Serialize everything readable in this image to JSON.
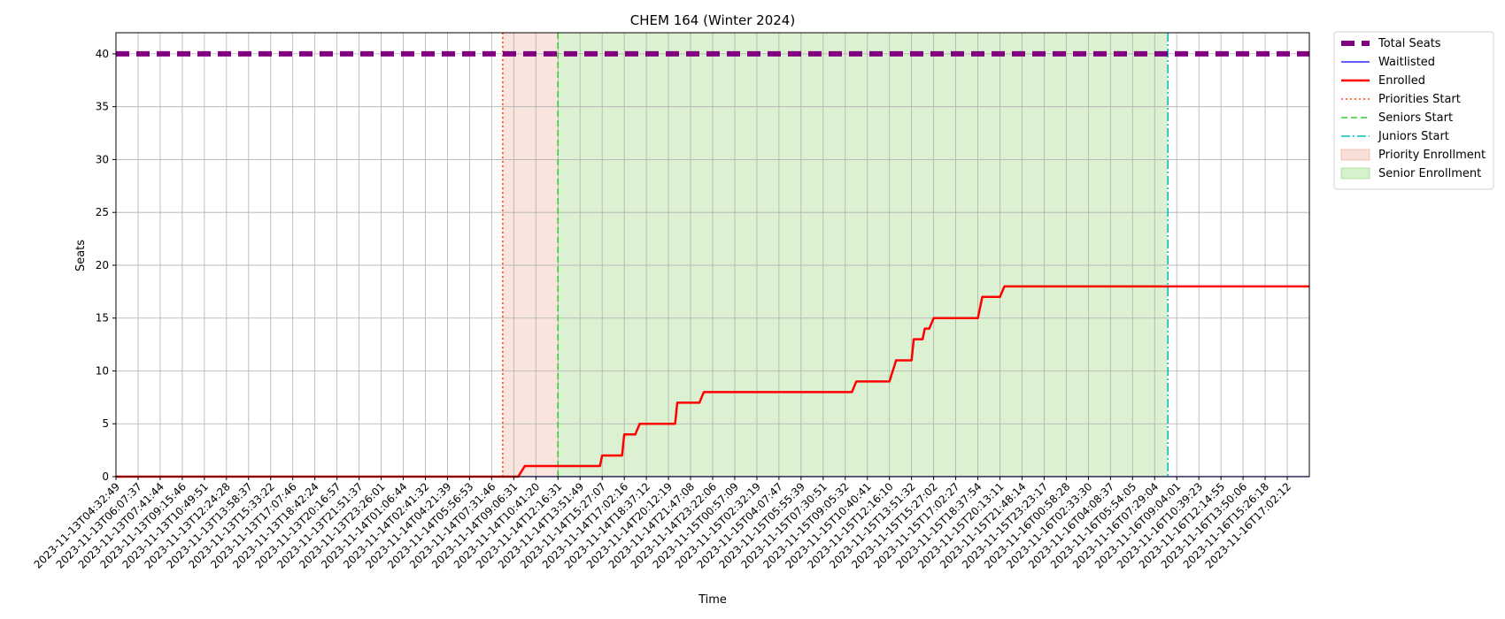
{
  "chart_data": {
    "type": "line",
    "title": "CHEM 164 (Winter 2024)",
    "xlabel": "Time",
    "ylabel": "Seats",
    "ylim": [
      0,
      42
    ],
    "yticks": [
      0,
      5,
      10,
      15,
      20,
      25,
      30,
      35,
      40
    ],
    "grid": true,
    "legend_position": "outside-top-right",
    "x_tick_labels": [
      "2023-11-13T04:32:49",
      "2023-11-13T06:07:37",
      "2023-11-13T07:41:44",
      "2023-11-13T09:15:46",
      "2023-11-13T10:49:51",
      "2023-11-13T12:24:28",
      "2023-11-13T13:58:37",
      "2023-11-13T15:33:22",
      "2023-11-13T17:07:46",
      "2023-11-13T18:42:24",
      "2023-11-13T20:16:57",
      "2023-11-13T21:51:37",
      "2023-11-13T23:26:01",
      "2023-11-14T01:06:44",
      "2023-11-14T02:41:32",
      "2023-11-14T04:21:39",
      "2023-11-14T05:56:53",
      "2023-11-14T07:31:46",
      "2023-11-14T09:06:31",
      "2023-11-14T10:41:20",
      "2023-11-14T12:16:31",
      "2023-11-14T13:51:49",
      "2023-11-14T15:27:07",
      "2023-11-14T17:02:16",
      "2023-11-14T18:37:12",
      "2023-11-14T20:12:19",
      "2023-11-14T21:47:08",
      "2023-11-14T23:22:06",
      "2023-11-15T00:57:09",
      "2023-11-15T02:32:19",
      "2023-11-15T04:07:47",
      "2023-11-15T05:55:39",
      "2023-11-15T07:30:51",
      "2023-11-15T09:05:32",
      "2023-11-15T10:40:41",
      "2023-11-15T12:16:10",
      "2023-11-15T13:51:32",
      "2023-11-15T15:27:02",
      "2023-11-15T17:02:27",
      "2023-11-15T18:37:54",
      "2023-11-15T20:13:11",
      "2023-11-15T21:48:14",
      "2023-11-15T23:23:17",
      "2023-11-16T00:58:28",
      "2023-11-16T02:33:30",
      "2023-11-16T04:08:37",
      "2023-11-16T05:54:05",
      "2023-11-16T07:29:04",
      "2023-11-16T09:04:01",
      "2023-11-16T10:39:23",
      "2023-11-16T12:14:55",
      "2023-11-16T13:50:06",
      "2023-11-16T15:26:18",
      "2023-11-16T17:02:12"
    ],
    "x_range": [
      0,
      54
    ],
    "series": [
      {
        "name": "Total Seats",
        "style": "dashed-thick",
        "color": "#800080",
        "points": [
          [
            0,
            40
          ],
          [
            54,
            40
          ]
        ]
      },
      {
        "name": "Waitlisted",
        "style": "solid-thin",
        "color": "#0000ff",
        "points": [
          [
            0,
            0
          ],
          [
            54,
            0
          ]
        ]
      },
      {
        "name": "Enrolled",
        "style": "solid",
        "color": "#ff0000",
        "points": [
          [
            0,
            0
          ],
          [
            18.2,
            0
          ],
          [
            18.5,
            1
          ],
          [
            21.9,
            1
          ],
          [
            22.0,
            2
          ],
          [
            22.9,
            2
          ],
          [
            23.0,
            4
          ],
          [
            23.5,
            4
          ],
          [
            23.7,
            5
          ],
          [
            25.3,
            5
          ],
          [
            25.4,
            7
          ],
          [
            26.4,
            7
          ],
          [
            26.6,
            8
          ],
          [
            33.3,
            8
          ],
          [
            33.5,
            9
          ],
          [
            35.0,
            9
          ],
          [
            35.3,
            11
          ],
          [
            36.0,
            11
          ],
          [
            36.1,
            13
          ],
          [
            36.5,
            13
          ],
          [
            36.6,
            14
          ],
          [
            36.8,
            14
          ],
          [
            37.0,
            15
          ],
          [
            39.0,
            15
          ],
          [
            39.2,
            17
          ],
          [
            40.0,
            17
          ],
          [
            40.2,
            18
          ],
          [
            54,
            18
          ]
        ]
      }
    ],
    "vlines": [
      {
        "name": "Priorities Start",
        "x": 17.5,
        "style": "dotted",
        "color": "#ff4500"
      },
      {
        "name": "Seniors Start",
        "x": 20.0,
        "style": "dashed",
        "color": "#32cd32"
      },
      {
        "name": "Juniors Start",
        "x": 47.6,
        "style": "dashdot",
        "color": "#00bfbf"
      }
    ],
    "spans": [
      {
        "name": "Priority Enrollment",
        "x0": 17.5,
        "x1": 20.0,
        "color": "#e9967a",
        "opacity": 0.25
      },
      {
        "name": "Senior Enrollment",
        "x0": 20.0,
        "x1": 47.6,
        "color": "#7ccd5a",
        "opacity": 0.28
      }
    ],
    "legend": [
      {
        "label": "Total Seats",
        "kind": "line",
        "color": "#800080",
        "style": "dashed-thick"
      },
      {
        "label": "Waitlisted",
        "kind": "line",
        "color": "#0000ff",
        "style": "solid-thin"
      },
      {
        "label": "Enrolled",
        "kind": "line",
        "color": "#ff0000",
        "style": "solid"
      },
      {
        "label": "Priorities Start",
        "kind": "line",
        "color": "#ff4500",
        "style": "dotted"
      },
      {
        "label": "Seniors Start",
        "kind": "line",
        "color": "#32cd32",
        "style": "dashed"
      },
      {
        "label": "Juniors Start",
        "kind": "line",
        "color": "#00bfbf",
        "style": "dashdot"
      },
      {
        "label": "Priority Enrollment",
        "kind": "patch",
        "color": "#e9967a"
      },
      {
        "label": "Senior Enrollment",
        "kind": "patch",
        "color": "#7ccd5a"
      }
    ]
  }
}
